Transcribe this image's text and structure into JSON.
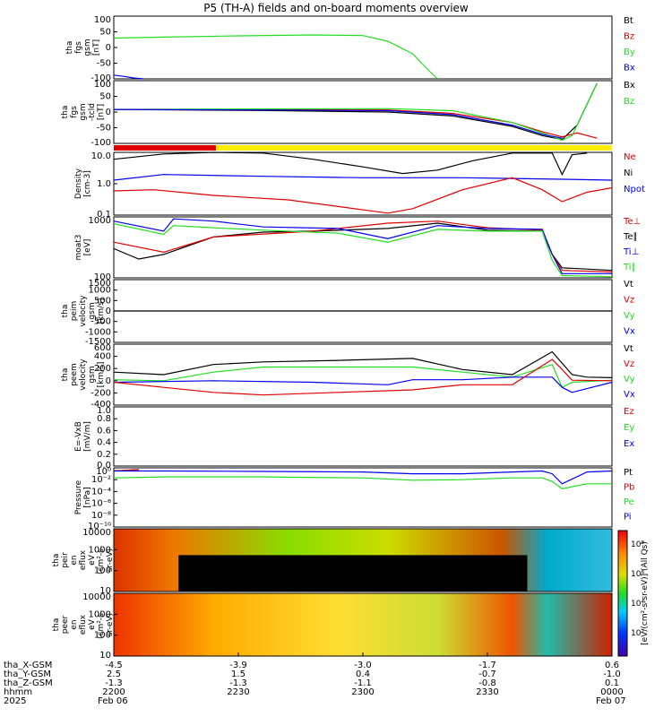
{
  "title": "P5 (TH-A) fields and on-board moments overview",
  "colors": {
    "black": "#000000",
    "red": "#e00000",
    "green": "#22dd22",
    "blue": "#0000ee",
    "yellow": "#ffee00"
  },
  "chart_data": [
    {
      "type": "line",
      "ylabel": [
        "tha",
        "fgs",
        "gsm",
        "[nT]"
      ],
      "ylim": [
        -100,
        100
      ],
      "yticks": [
        "100",
        "50",
        "0",
        "-50",
        "-100"
      ],
      "legend": [
        {
          "label": "Bt",
          "color": "#000000"
        },
        {
          "label": "Bz",
          "color": "#e00000"
        },
        {
          "label": "By",
          "color": "#22dd22"
        },
        {
          "label": "Bx",
          "color": "#0000ee"
        }
      ],
      "series": [
        {
          "color": "#22dd22",
          "x": [
            0,
            0.1,
            0.25,
            0.4,
            0.5,
            0.55,
            0.6,
            0.63,
            0.65
          ],
          "y": [
            30,
            33,
            37,
            40,
            38,
            20,
            -20,
            -70,
            -100
          ]
        },
        {
          "color": "#0000ee",
          "x": [
            0,
            0.02,
            0.04,
            0.06
          ],
          "y": [
            -88,
            -92,
            -97,
            -100
          ]
        }
      ]
    },
    {
      "type": "line",
      "ylabel": [
        "tha",
        "fgs",
        "gsm",
        "-tcld",
        "[nT]"
      ],
      "ylim": [
        -130,
        110
      ],
      "yticks": [
        "100",
        "50",
        "0",
        "-50",
        "-100"
      ],
      "legend": [
        {
          "label": "Bx",
          "color": "#000000"
        },
        {
          "label": "Bz",
          "color": "#22dd22"
        }
      ],
      "series": [
        {
          "color": "#000000",
          "x": [
            0,
            0.3,
            0.55,
            0.68,
            0.8,
            0.86,
            0.9,
            0.93,
            0.97
          ],
          "y": [
            0,
            -4,
            -10,
            -25,
            -65,
            -100,
            -115,
            -60,
            100
          ]
        },
        {
          "color": "#e00000",
          "x": [
            0,
            0.3,
            0.55,
            0.68,
            0.8,
            0.86,
            0.9,
            0.93,
            0.97
          ],
          "y": [
            0,
            -1,
            -2,
            -15,
            -50,
            -85,
            -105,
            -90,
            -110
          ]
        },
        {
          "color": "#22dd22",
          "x": [
            0,
            0.3,
            0.55,
            0.68,
            0.8,
            0.86,
            0.9,
            0.92,
            0.97
          ],
          "y": [
            0,
            2,
            3,
            -5,
            -50,
            -90,
            -118,
            -100,
            100
          ]
        },
        {
          "color": "#0000ee",
          "x": [
            0,
            0.3,
            0.55,
            0.68,
            0.8,
            0.86,
            0.9
          ],
          "y": [
            0,
            -2,
            -5,
            -20,
            -60,
            -95,
            -110
          ]
        }
      ]
    },
    {
      "type": "bar_strip",
      "segments": [
        {
          "from": 0,
          "to": 0.205,
          "color": "#e00000"
        },
        {
          "from": 0.205,
          "to": 1,
          "color": "#ffee00"
        }
      ]
    },
    {
      "type": "line",
      "scale": "log",
      "ylabel": [
        "Density",
        "[cm-3]"
      ],
      "ylim": [
        0.05,
        15
      ],
      "yticks": [
        "10.0",
        "1.0",
        "0.1"
      ],
      "legend": [
        {
          "label": "Ne",
          "color": "#e00000"
        },
        {
          "label": "Ni",
          "color": "#000000"
        },
        {
          "label": "Npot",
          "color": "#0000ee"
        }
      ],
      "series": [
        {
          "color": "#000000",
          "x": [
            0,
            0.1,
            0.2,
            0.3,
            0.4,
            0.5,
            0.58,
            0.65,
            0.72,
            0.8,
            0.88,
            0.9,
            0.92,
            0.95
          ],
          "y": [
            8,
            13,
            15,
            14,
            8,
            4,
            2.2,
            3,
            7,
            14,
            14,
            2,
            12,
            14
          ]
        },
        {
          "color": "#0000ee",
          "x": [
            0,
            0.1,
            0.3,
            0.5,
            0.7,
            0.8,
            0.9,
            1.0
          ],
          "y": [
            1.2,
            2,
            1.7,
            1.5,
            1.5,
            1.4,
            1.3,
            1.2
          ]
        },
        {
          "color": "#e00000",
          "x": [
            0,
            0.08,
            0.2,
            0.35,
            0.55,
            0.6,
            0.7,
            0.8,
            0.86,
            0.9,
            0.95,
            1.0
          ],
          "y": [
            0.45,
            0.5,
            0.3,
            0.2,
            0.06,
            0.09,
            0.5,
            1.5,
            0.5,
            0.17,
            0.4,
            0.6
          ]
        }
      ]
    },
    {
      "type": "line",
      "scale": "log",
      "ylabel": [
        "moat3",
        "[eV]"
      ],
      "ylim": [
        60,
        4000
      ],
      "yticks": [
        "1000",
        "100"
      ],
      "legend": [
        {
          "label": "Te⊥",
          "color": "#e00000"
        },
        {
          "label": "Te∥",
          "color": "#000000"
        },
        {
          "label": "Ti⊥",
          "color": "#0000ee"
        },
        {
          "label": "Ti∥",
          "color": "#22dd22"
        }
      ],
      "series": [
        {
          "color": "#000000",
          "x": [
            0,
            0.05,
            0.1,
            0.2,
            0.3,
            0.4,
            0.55,
            0.65,
            0.75,
            0.86,
            0.88,
            0.9,
            1.0
          ],
          "y": [
            450,
            220,
            300,
            1000,
            1400,
            1500,
            1800,
            2600,
            1600,
            1500,
            300,
            120,
            100
          ]
        },
        {
          "color": "#e00000",
          "x": [
            0,
            0.1,
            0.2,
            0.4,
            0.55,
            0.65,
            0.75,
            0.86,
            0.88,
            0.9,
            1.0
          ],
          "y": [
            700,
            350,
            1000,
            1500,
            2600,
            3000,
            1900,
            1600,
            300,
            100,
            90
          ]
        },
        {
          "color": "#0000ee",
          "x": [
            0,
            0.1,
            0.12,
            0.2,
            0.3,
            0.45,
            0.55,
            0.65,
            0.75,
            0.86,
            0.88,
            0.9,
            1.0
          ],
          "y": [
            3000,
            1500,
            3500,
            3000,
            2000,
            1800,
            900,
            2200,
            1800,
            1700,
            300,
            80,
            80
          ]
        },
        {
          "color": "#22dd22",
          "x": [
            0,
            0.1,
            0.12,
            0.2,
            0.3,
            0.45,
            0.55,
            0.65,
            0.75,
            0.86,
            0.88,
            0.9,
            1.0
          ],
          "y": [
            2500,
            1200,
            2200,
            1900,
            1600,
            1300,
            700,
            1700,
            1500,
            1500,
            200,
            70,
            65
          ]
        }
      ]
    },
    {
      "type": "line",
      "ylabel": [
        "tha",
        "peim",
        "velocity",
        "gsm",
        "[km/s]"
      ],
      "ylim": [
        -1500,
        1500
      ],
      "yticks": [
        "1500",
        "1000",
        "500",
        "0",
        "-500",
        "-1000",
        "-1500"
      ],
      "legend": [
        {
          "label": "Vt",
          "color": "#000000"
        },
        {
          "label": "Vz",
          "color": "#e00000"
        },
        {
          "label": "Vy",
          "color": "#22dd22"
        },
        {
          "label": "Vx",
          "color": "#0000ee"
        }
      ],
      "series": [
        {
          "color": "#000000",
          "x": [
            0,
            1.0
          ],
          "y": [
            0,
            0
          ]
        }
      ]
    },
    {
      "type": "line",
      "ylabel": [
        "tha",
        "peem",
        "velocity",
        "gsm",
        "[km/s]"
      ],
      "ylim": [
        -500,
        700
      ],
      "yticks": [
        "600",
        "400",
        "200",
        "0",
        "-200",
        "-400"
      ],
      "legend": [
        {
          "label": "Vt",
          "color": "#000000"
        },
        {
          "label": "Vz",
          "color": "#e00000"
        },
        {
          "label": "Vy",
          "color": "#22dd22"
        },
        {
          "label": "Vx",
          "color": "#0000ee"
        }
      ],
      "series": [
        {
          "color": "#000000",
          "x": [
            0,
            0.1,
            0.2,
            0.3,
            0.45,
            0.6,
            0.7,
            0.8,
            0.88,
            0.92,
            0.95,
            1.0
          ],
          "y": [
            150,
            100,
            300,
            350,
            380,
            420,
            200,
            100,
            550,
            100,
            50,
            40
          ]
        },
        {
          "color": "#22dd22",
          "x": [
            0,
            0.1,
            0.2,
            0.3,
            0.45,
            0.6,
            0.7,
            0.8,
            0.88,
            0.9,
            0.92,
            1.0
          ],
          "y": [
            0,
            -20,
            150,
            250,
            250,
            250,
            150,
            50,
            300,
            -150,
            -50,
            -10
          ]
        },
        {
          "color": "#0000ee",
          "x": [
            0,
            0.2,
            0.4,
            0.55,
            0.6,
            0.7,
            0.8,
            0.88,
            0.9,
            0.92,
            1.0
          ],
          "y": [
            -50,
            -20,
            -50,
            -100,
            0,
            0,
            50,
            50,
            -150,
            -250,
            -50
          ]
        },
        {
          "color": "#e00000",
          "x": [
            0,
            0.1,
            0.2,
            0.3,
            0.45,
            0.6,
            0.7,
            0.8,
            0.88,
            0.9,
            0.92,
            1.0
          ],
          "y": [
            -50,
            -150,
            -250,
            -300,
            -250,
            -200,
            -100,
            -100,
            400,
            200,
            -10,
            -20
          ]
        }
      ]
    },
    {
      "type": "line",
      "ylabel": [
        "E=-VxB",
        "[mV/m]"
      ],
      "ylim": [
        -0.05,
        1.0
      ],
      "yticks": [
        "1.0",
        "0.8",
        "0.6",
        "0.4",
        "0.2",
        "0.0"
      ],
      "legend": [
        {
          "label": "Ez",
          "color": "#e00000"
        },
        {
          "label": "Ey",
          "color": "#22dd22"
        },
        {
          "label": "Ex",
          "color": "#0000ee"
        }
      ],
      "series": []
    },
    {
      "type": "line",
      "scale": "log",
      "ylabel": [
        "Pressure",
        "[nPa]"
      ],
      "ylim": [
        1e-10,
        1
      ],
      "yticks": [
        "10⁰",
        "10⁻²",
        "10⁻⁴",
        "10⁻⁶",
        "10⁻⁸",
        "10⁻¹⁰"
      ],
      "legend": [
        {
          "label": "Pt",
          "color": "#000000"
        },
        {
          "label": "Pb",
          "color": "#e00000"
        },
        {
          "label": "Pe",
          "color": "#22dd22"
        },
        {
          "label": "Pi",
          "color": "#0000ee"
        }
      ],
      "series": [
        {
          "color": "#000000",
          "x": [
            0,
            0.05
          ],
          "y": [
            0.3,
            0.5
          ]
        },
        {
          "color": "#e00000",
          "x": [
            0,
            0.05
          ],
          "y": [
            0.3,
            0.5
          ]
        },
        {
          "color": "#0000ee",
          "x": [
            0,
            0.1,
            0.3,
            0.5,
            0.6,
            0.7,
            0.8,
            0.86,
            0.88,
            0.9,
            0.95,
            1.0
          ],
          "y": [
            0.3,
            0.3,
            0.25,
            0.2,
            0.1,
            0.1,
            0.2,
            0.3,
            0.1,
            0.002,
            0.2,
            0.3
          ]
        },
        {
          "color": "#22dd22",
          "x": [
            0,
            0.1,
            0.3,
            0.5,
            0.6,
            0.7,
            0.8,
            0.86,
            0.88,
            0.9,
            0.95,
            1.0
          ],
          "y": [
            0.02,
            0.03,
            0.03,
            0.02,
            0.008,
            0.01,
            0.02,
            0.02,
            0.005,
            0.0003,
            0.002,
            0.002
          ]
        }
      ]
    },
    {
      "type": "heatmap",
      "ylabel": [
        "tha",
        "peir",
        "en",
        "eflux",
        "eV",
        "(cm²-s-",
        "sr-eV)"
      ],
      "yticks": [
        "10000",
        "1000",
        "100",
        "10"
      ]
    },
    {
      "type": "heatmap",
      "ylabel": [
        "tha",
        "peer",
        "en",
        "eflux",
        "eV",
        "(cm²-s-",
        "sr-eV)"
      ],
      "yticks": [
        "10000",
        "1000",
        "100",
        "10"
      ]
    }
  ],
  "colorbar": {
    "label": "[eV/(cm²-s-sr-eV)] (All Qs)",
    "ticks": [
      "10⁸",
      "10⁶",
      "10⁴",
      "10²"
    ]
  },
  "xaxis": {
    "row_labels": [
      "tha_X-GSM",
      "tha_Y-GSM",
      "tha_Z-GSM",
      "hhmm",
      "2025"
    ],
    "ticks": [
      {
        "values": [
          "-4.5",
          "2.5",
          "-1.3",
          "2200",
          "Feb 06"
        ]
      },
      {
        "values": [
          "-3.9",
          "1.5",
          "-1.3",
          "2230",
          ""
        ]
      },
      {
        "values": [
          "-3.0",
          "0.4",
          "-1.1",
          "2300",
          ""
        ]
      },
      {
        "values": [
          "-1.7",
          "-0.7",
          "-0.8",
          "2330",
          ""
        ]
      },
      {
        "values": [
          "0.6",
          "-1.0",
          "0.1",
          "0000",
          "Feb 07"
        ]
      }
    ]
  }
}
